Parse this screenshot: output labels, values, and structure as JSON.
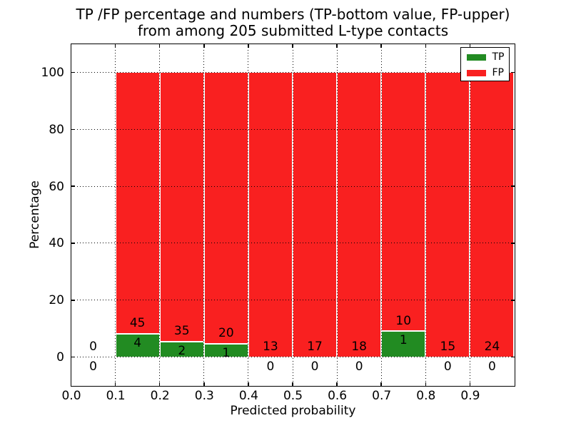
{
  "title": {
    "line1": "TP /FP percentage and numbers (TP-bottom value, FP-upper)",
    "line2": "from among 205 submitted L-type contacts"
  },
  "axes": {
    "xlabel": "Predicted probability",
    "ylabel": "Percentage",
    "xtick_labels": [
      "0.0",
      "0.1",
      "0.2",
      "0.3",
      "0.4",
      "0.5",
      "0.6",
      "0.7",
      "0.8",
      "0.9"
    ],
    "ytick_labels": [
      "0",
      "20",
      "40",
      "60",
      "80",
      "100"
    ],
    "xlim": [
      0.0,
      1.0
    ],
    "ylim": [
      -10,
      110
    ],
    "grid": "dotted, drawn above bars"
  },
  "legend": {
    "position": "upper right",
    "items": [
      {
        "label": "TP",
        "color": "#228b22"
      },
      {
        "label": "FP",
        "color": "#f92020"
      }
    ]
  },
  "chart_data": {
    "type": "bar",
    "stacked": true,
    "normalization": "each bin stacked to 100%; green = TP share, red = FP share",
    "total_contacts": 205,
    "bin_labels_rule": "FP count printed above green top, TP count printed below green top (below axis when TP=0)",
    "bins": [
      {
        "range": [
          0.0,
          0.1
        ],
        "tp": 0,
        "fp": 0
      },
      {
        "range": [
          0.1,
          0.2
        ],
        "tp": 4,
        "fp": 45
      },
      {
        "range": [
          0.2,
          0.3
        ],
        "tp": 2,
        "fp": 35
      },
      {
        "range": [
          0.3,
          0.4
        ],
        "tp": 1,
        "fp": 20
      },
      {
        "range": [
          0.4,
          0.5
        ],
        "tp": 0,
        "fp": 13
      },
      {
        "range": [
          0.5,
          0.6
        ],
        "tp": 0,
        "fp": 17
      },
      {
        "range": [
          0.6,
          0.7
        ],
        "tp": 0,
        "fp": 18
      },
      {
        "range": [
          0.7,
          0.8
        ],
        "tp": 1,
        "fp": 10
      },
      {
        "range": [
          0.8,
          0.9
        ],
        "tp": 0,
        "fp": 15
      },
      {
        "range": [
          0.9,
          1.0
        ],
        "tp": 0,
        "fp": 24
      }
    ]
  },
  "colors": {
    "tp": "#228b22",
    "fp": "#f92020",
    "bar_edge": "#ffffff",
    "grid": "#000000",
    "text": "#000000",
    "background": "#ffffff"
  }
}
